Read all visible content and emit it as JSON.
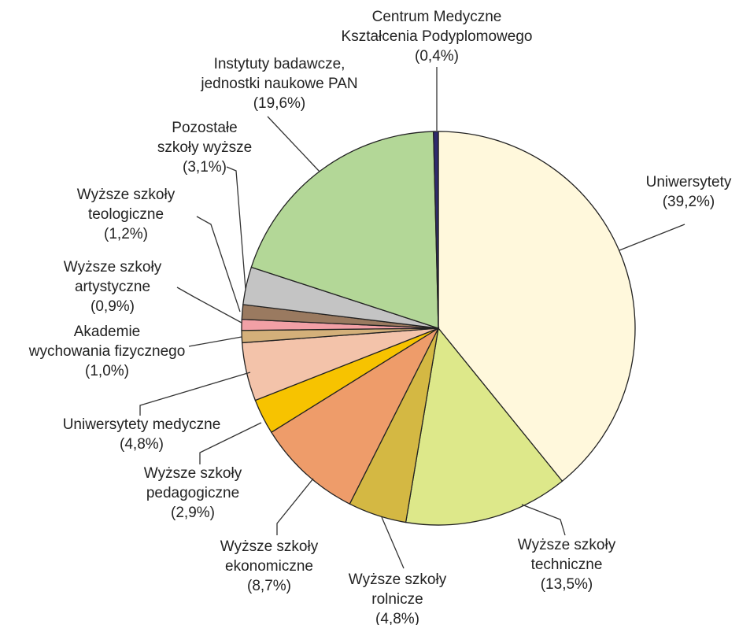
{
  "chart_data": {
    "type": "pie",
    "categories": [
      [
        "Uniwersytety"
      ],
      [
        "Wyższe szkoły",
        "techniczne"
      ],
      [
        "Wyższe szkoły",
        "rolnicze"
      ],
      [
        "Wyższe szkoły",
        "ekonomiczne"
      ],
      [
        "Wyższe szkoły",
        "pedagogiczne"
      ],
      [
        "Uniwersytety medyczne"
      ],
      [
        "Akademie",
        "wychowania fizycznego"
      ],
      [
        "Wyższe szkoły",
        "artystyczne"
      ],
      [
        "Wyższe szkoły",
        "teologiczne"
      ],
      [
        "Pozostałe",
        "szkoły wyższe"
      ],
      [
        "Instytuty badawcze,",
        "jednostki naukowe PAN"
      ],
      [
        "Centrum Medyczne",
        "Kształcenia Podyplomowego"
      ]
    ],
    "values": [
      39.2,
      13.5,
      4.8,
      8.7,
      2.9,
      4.8,
      1.0,
      0.9,
      1.2,
      3.1,
      19.6,
      0.4
    ],
    "value_labels": [
      "(39,2%)",
      "(13,5%)",
      "(4,8%)",
      "(8,7%)",
      "(2,9%)",
      "(4,8%)",
      "(1,0%)",
      "(0,9%)",
      "(1,2%)",
      "(3,1%)",
      "(19,6%)",
      "(0,4%)"
    ],
    "colors": [
      "#fff8dc",
      "#dde88a",
      "#d4b843",
      "#ee9c6a",
      "#f7c300",
      "#f3c3aa",
      "#d4b07a",
      "#f2a0a6",
      "#9a7a60",
      "#c4c4c4",
      "#b3d797",
      "#2e2a6e"
    ]
  }
}
